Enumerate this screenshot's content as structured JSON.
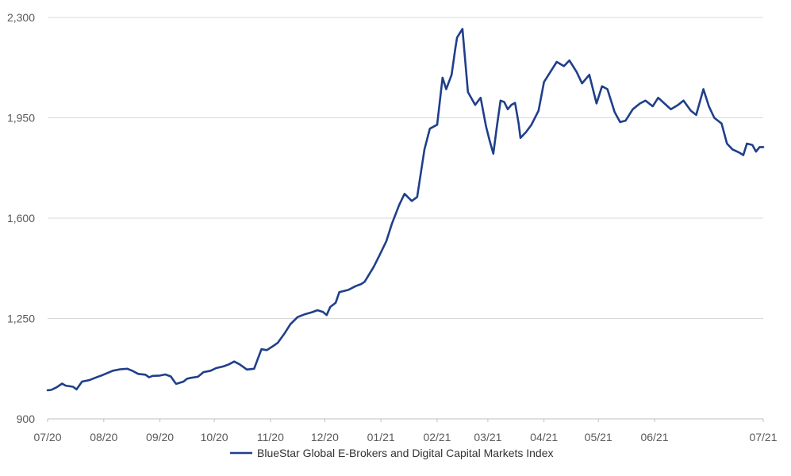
{
  "chart_data": {
    "type": "line",
    "title": "",
    "xlabel": "",
    "ylabel": "",
    "ylim": [
      900,
      2300
    ],
    "yticks": [
      "900",
      "1,250",
      "1,600",
      "1,950",
      "2,300"
    ],
    "ytick_values": [
      900,
      1250,
      1600,
      1950,
      2300
    ],
    "xticks": [
      "07/20",
      "08/20",
      "09/20",
      "10/20",
      "11/20",
      "12/20",
      "01/21",
      "02/21",
      "03/21",
      "04/21",
      "05/21",
      "06/21",
      "07/21"
    ],
    "grid": "horizontal",
    "legend_position": "bottom",
    "series": [
      {
        "name": "BlueStar Global E-Brokers and Digital Capital Markets Index",
        "color": "#1f3f8a",
        "points": [
          [
            "07/01/20",
            1000
          ],
          [
            "07/03/20",
            1001
          ],
          [
            "07/06/20",
            1010
          ],
          [
            "07/09/20",
            1023
          ],
          [
            "07/11/20",
            1016
          ],
          [
            "07/15/20",
            1012
          ],
          [
            "07/17/20",
            1003
          ],
          [
            "07/20/20",
            1030
          ],
          [
            "07/24/20",
            1035
          ],
          [
            "07/28/20",
            1045
          ],
          [
            "07/31/20",
            1052
          ],
          [
            "08/03/20",
            1060
          ],
          [
            "08/06/20",
            1068
          ],
          [
            "08/10/20",
            1073
          ],
          [
            "08/14/20",
            1075
          ],
          [
            "08/17/20",
            1067
          ],
          [
            "08/20/20",
            1057
          ],
          [
            "08/24/20",
            1054
          ],
          [
            "08/26/20",
            1045
          ],
          [
            "08/28/20",
            1050
          ],
          [
            "09/01/20",
            1051
          ],
          [
            "09/04/20",
            1055
          ],
          [
            "09/07/20",
            1048
          ],
          [
            "09/09/20",
            1030
          ],
          [
            "09/10/20",
            1022
          ],
          [
            "09/14/20",
            1030
          ],
          [
            "09/16/20",
            1040
          ],
          [
            "09/18/20",
            1043
          ],
          [
            "09/22/20",
            1047
          ],
          [
            "09/25/20",
            1063
          ],
          [
            "09/29/20",
            1068
          ],
          [
            "10/02/20",
            1077
          ],
          [
            "10/06/20",
            1083
          ],
          [
            "10/09/20",
            1090
          ],
          [
            "10/12/20",
            1100
          ],
          [
            "10/15/20",
            1090
          ],
          [
            "10/19/20",
            1072
          ],
          [
            "10/23/20",
            1075
          ],
          [
            "10/27/20",
            1143
          ],
          [
            "10/30/20",
            1140
          ],
          [
            "11/02/20",
            1152
          ],
          [
            "11/05/20",
            1165
          ],
          [
            "11/09/20",
            1200
          ],
          [
            "11/12/20",
            1230
          ],
          [
            "11/16/20",
            1255
          ],
          [
            "11/20/20",
            1265
          ],
          [
            "11/24/20",
            1272
          ],
          [
            "11/27/20",
            1279
          ],
          [
            "11/30/20",
            1273
          ],
          [
            "12/02/20",
            1262
          ],
          [
            "12/04/20",
            1290
          ],
          [
            "12/07/20",
            1305
          ],
          [
            "12/09/20",
            1342
          ],
          [
            "12/14/20",
            1350
          ],
          [
            "12/18/20",
            1363
          ],
          [
            "12/21/20",
            1370
          ],
          [
            "12/23/20",
            1378
          ],
          [
            "12/28/20",
            1430
          ],
          [
            "12/31/20",
            1468
          ],
          [
            "01/04/21",
            1520
          ],
          [
            "01/07/21",
            1580
          ],
          [
            "01/11/21",
            1645
          ],
          [
            "01/14/21",
            1685
          ],
          [
            "01/18/21",
            1660
          ],
          [
            "01/21/21",
            1674
          ],
          [
            "01/25/21",
            1840
          ],
          [
            "01/28/21",
            1912
          ],
          [
            "02/01/21",
            1926
          ],
          [
            "02/04/21",
            2090
          ],
          [
            "02/06/21",
            2050
          ],
          [
            "02/09/21",
            2100
          ],
          [
            "02/11/21",
            2190
          ],
          [
            "02/12/21",
            2230
          ],
          [
            "02/15/21",
            2260
          ],
          [
            "02/18/21",
            2040
          ],
          [
            "02/22/21",
            1995
          ],
          [
            "02/25/21",
            2020
          ],
          [
            "02/28/21",
            1920
          ],
          [
            "03/02/21",
            1870
          ],
          [
            "03/04/21",
            1825
          ],
          [
            "03/06/21",
            1920
          ],
          [
            "03/08/21",
            2010
          ],
          [
            "03/10/21",
            2005
          ],
          [
            "03/12/21",
            1980
          ],
          [
            "03/14/21",
            1995
          ],
          [
            "03/16/21",
            2002
          ],
          [
            "03/18/21",
            1930
          ],
          [
            "03/19/21",
            1880
          ],
          [
            "03/22/21",
            1900
          ],
          [
            "03/25/21",
            1925
          ],
          [
            "03/29/21",
            1975
          ],
          [
            "04/01/21",
            2075
          ],
          [
            "04/05/21",
            2115
          ],
          [
            "04/08/21",
            2145
          ],
          [
            "04/12/21",
            2130
          ],
          [
            "04/15/21",
            2150
          ],
          [
            "04/19/21",
            2110
          ],
          [
            "04/22/21",
            2070
          ],
          [
            "04/26/21",
            2100
          ],
          [
            "04/30/21",
            2000
          ],
          [
            "05/03/21",
            2060
          ],
          [
            "05/06/21",
            2050
          ],
          [
            "05/10/21",
            1970
          ],
          [
            "05/13/21",
            1935
          ],
          [
            "05/16/21",
            1940
          ],
          [
            "05/20/21",
            1980
          ],
          [
            "05/24/21",
            2000
          ],
          [
            "05/27/21",
            2010
          ],
          [
            "05/31/21",
            1990
          ],
          [
            "06/03/21",
            2020
          ],
          [
            "06/07/21",
            1997
          ],
          [
            "06/10/21",
            1980
          ],
          [
            "06/14/21",
            1995
          ],
          [
            "06/17/21",
            2010
          ],
          [
            "06/21/21",
            1975
          ],
          [
            "06/24/21",
            1960
          ],
          [
            "06/28/21",
            2050
          ],
          [
            "07/01/21",
            1990
          ],
          [
            "07/04/21",
            1950
          ],
          [
            "07/06/21",
            1940
          ],
          [
            "07/08/21",
            1930
          ],
          [
            "07/11/21",
            1860
          ],
          [
            "07/14/21",
            1840
          ],
          [
            "07/18/21",
            1828
          ],
          [
            "07/20/21",
            1820
          ],
          [
            "07/22/21",
            1860
          ],
          [
            "07/25/21",
            1855
          ],
          [
            "07/27/21",
            1832
          ],
          [
            "07/29/21",
            1848
          ],
          [
            "07/31/21",
            1848
          ]
        ]
      }
    ]
  }
}
